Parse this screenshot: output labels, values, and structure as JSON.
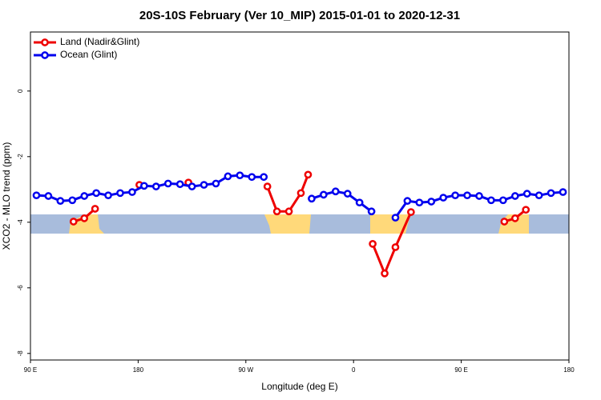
{
  "chart_data": {
    "type": "line",
    "title": "20S-10S February (Ver 10_MIP)   2015-01-01 to 2020-12-31",
    "x_label": "Longitude (deg E)",
    "y_label": "XCO2 - MLO trend (ppm)",
    "xlim": [
      90,
      540
    ],
    "ylim": [
      -8.2,
      1.8
    ],
    "xticks": [
      {
        "value": 90,
        "label": "90 E"
      },
      180,
      {
        "value": 270,
        "label": "90 W"
      },
      {
        "value": 360,
        "label": "0"
      },
      {
        "value": 450,
        "label": "90 E"
      },
      {
        "value": 540,
        "label": "180"
      }
    ],
    "yticks": [
      0,
      -2,
      -4,
      -6,
      -8
    ],
    "legend": "top-left",
    "series": [
      {
        "name": "Land (Nadir&Glint)",
        "color": "#ee0000",
        "x": [
          126,
          135,
          144,
          160,
          181,
          200,
          222,
          260,
          288,
          296,
          306,
          316,
          322,
          350,
          376,
          386,
          395,
          408,
          450,
          486,
          495,
          504
        ],
        "values": [
          -3.98,
          -3.88,
          -3.59,
          null,
          -2.86,
          null,
          -2.79,
          null,
          -2.91,
          -3.67,
          -3.67,
          -3.11,
          -2.55,
          null,
          -4.66,
          -5.56,
          -4.76,
          -3.69,
          null,
          -3.98,
          -3.88,
          -3.62
        ]
      },
      {
        "name": "Ocean (Glint)",
        "color": "#0000ee",
        "x": [
          95,
          105,
          115,
          125,
          135,
          145,
          155,
          165,
          175,
          185,
          195,
          205,
          215,
          225,
          235,
          245,
          255,
          265,
          275,
          285,
          305,
          325,
          335,
          345,
          355,
          365,
          375,
          385,
          395,
          405,
          415,
          425,
          435,
          445,
          455,
          465,
          475,
          485,
          495,
          505,
          515,
          525,
          535
        ],
        "values": [
          -3.18,
          -3.2,
          -3.35,
          -3.33,
          -3.2,
          -3.11,
          -3.18,
          -3.11,
          -3.08,
          -2.89,
          -2.91,
          -2.82,
          -2.84,
          -2.91,
          -2.86,
          -2.82,
          -2.6,
          -2.57,
          -2.62,
          -2.62,
          null,
          -3.28,
          -3.16,
          -3.06,
          -3.13,
          -3.4,
          -3.67,
          null,
          -3.86,
          -3.35,
          -3.4,
          -3.37,
          -3.25,
          -3.18,
          -3.18,
          -3.2,
          -3.33,
          -3.33,
          -3.2,
          -3.13,
          -3.18,
          -3.11,
          -3.08
        ]
      }
    ]
  }
}
